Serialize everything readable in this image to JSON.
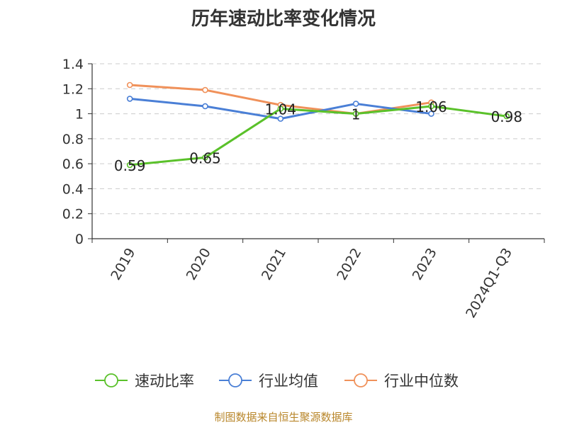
{
  "chart_data": {
    "type": "line",
    "title": "历年速动比率变化情况",
    "categories": [
      "2019",
      "2020",
      "2021",
      "2022",
      "2023",
      "2024Q1-Q3"
    ],
    "ylim": [
      0,
      1.4
    ],
    "yticks": [
      "0",
      "0.2",
      "0.4",
      "0.6",
      "0.8",
      "1",
      "1.2",
      "1.4"
    ],
    "grid": true,
    "legend_position": "bottom",
    "series": [
      {
        "name": "速动比率",
        "color": "#5ac12a",
        "values": [
          0.59,
          0.65,
          1.04,
          1.0,
          1.06,
          0.98
        ],
        "labels": [
          "0.59",
          "0.65",
          "1.04",
          "1",
          "1.06",
          "0.98"
        ],
        "show_labels": true
      },
      {
        "name": "行业均值",
        "color": "#4a7fd6",
        "values": [
          1.12,
          1.06,
          0.96,
          1.08,
          1.0,
          null
        ],
        "show_labels": false
      },
      {
        "name": "行业中位数",
        "color": "#f0915a",
        "values": [
          1.23,
          1.19,
          1.07,
          1.0,
          1.09,
          null
        ],
        "show_labels": false
      }
    ]
  },
  "source_note": "制图数据来自恒生聚源数据库"
}
